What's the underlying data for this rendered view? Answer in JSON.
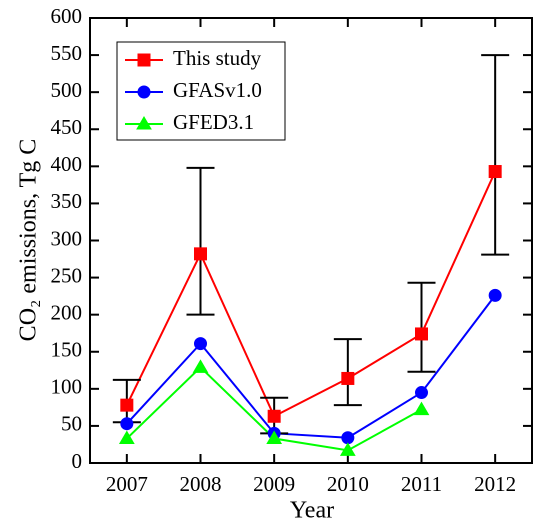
{
  "chart_data": {
    "type": "line",
    "x_label": "Year",
    "y_label": "CO₂ emissions, Tg C",
    "x": [
      2007,
      2008,
      2009,
      2010,
      2011,
      2012
    ],
    "xlim": [
      2006.5,
      2012.5
    ],
    "xticks": [
      2007,
      2008,
      2009,
      2010,
      2011,
      2012
    ],
    "ylim": [
      0,
      600
    ],
    "yticks": [
      0,
      50,
      100,
      150,
      200,
      250,
      300,
      350,
      400,
      450,
      500,
      550,
      600
    ],
    "legend": "upper left",
    "series": [
      {
        "name": "This study",
        "color": "#ff0000",
        "marker": "square",
        "values": [
          78,
          282,
          63,
          114,
          174,
          393
        ],
        "error_lower": [
          55,
          200,
          40,
          78,
          123,
          281
        ],
        "error_upper": [
          112,
          398,
          88,
          167,
          243,
          550
        ]
      },
      {
        "name": "GFASv1.0",
        "color": "#0000ff",
        "marker": "circle",
        "values": [
          53,
          161,
          40,
          34,
          95,
          226
        ]
      },
      {
        "name": "GFED3.1",
        "color": "#00ff00",
        "marker": "triangle",
        "values": [
          33,
          129,
          33,
          17,
          72,
          null
        ]
      }
    ]
  }
}
